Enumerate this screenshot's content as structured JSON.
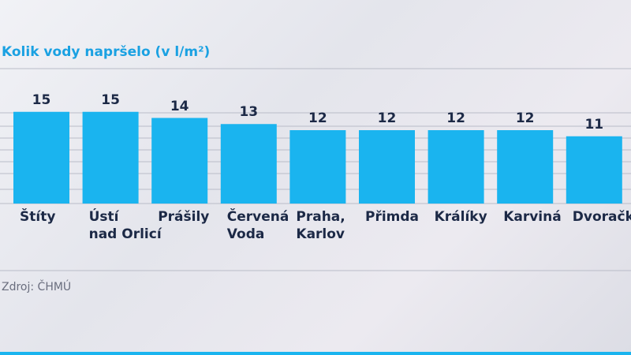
{
  "chart_data": {
    "type": "bar",
    "title": "Kolik vody napršelo (v l/m²)",
    "categories": [
      "Štíty",
      "Ústí\nnad Orlicí",
      "Prášily",
      "Červená\nVoda",
      "Praha,\nKarlov",
      "Přimda",
      "Králíky",
      "Karviná",
      "Dvoračky"
    ],
    "values": [
      15,
      15,
      14,
      13,
      12,
      12,
      12,
      12,
      11
    ],
    "color": "#1ab4ef",
    "ylim": [
      0,
      20
    ],
    "source": "Zdroj: ČHMÚ"
  }
}
